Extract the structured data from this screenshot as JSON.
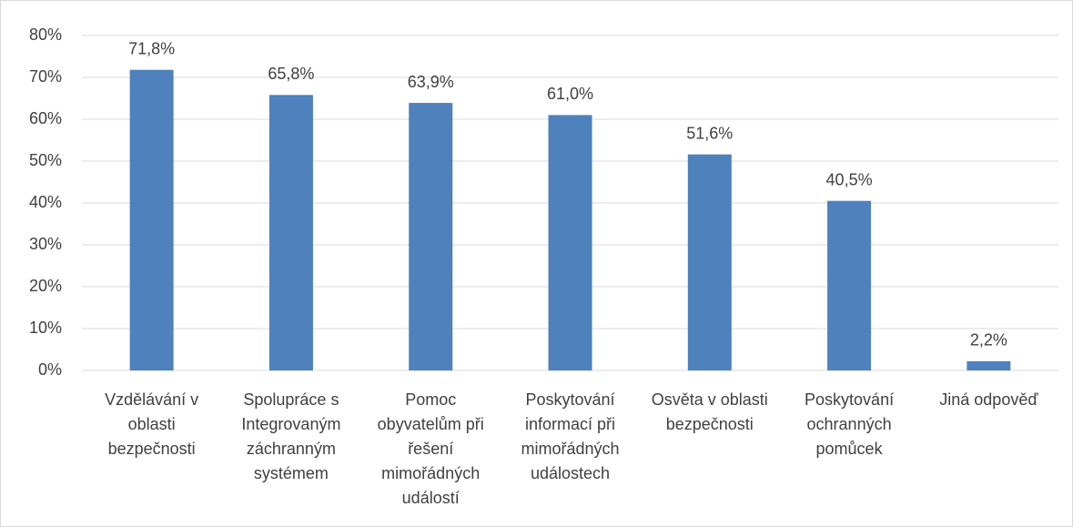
{
  "chart_data": {
    "type": "bar",
    "categories": [
      "Vzdělávání v oblasti bezpečnosti",
      "Spolupráce s Integrovaným záchranným systémem",
      "Pomoc obyvatelům při řešení mimořádných událostí",
      "Poskytování informací při mimořádných událostech",
      "Osvěta v oblasti bezpečnosti",
      "Poskytování ochranných pomůcek",
      "Jiná odpověď"
    ],
    "values": [
      71.8,
      65.8,
      63.9,
      61.0,
      51.6,
      40.5,
      2.2
    ],
    "value_labels": [
      "71,8%",
      "65,8%",
      "63,9%",
      "61,0%",
      "51,6%",
      "40,5%",
      "2,2%"
    ],
    "color": "#4f81bd",
    "ylim": [
      0,
      80
    ],
    "yticks": [
      {
        "value": 0,
        "label": "0%"
      },
      {
        "value": 10,
        "label": "10%"
      },
      {
        "value": 20,
        "label": "20%"
      },
      {
        "value": 30,
        "label": "30%"
      },
      {
        "value": 40,
        "label": "40%"
      },
      {
        "value": 50,
        "label": "50%"
      },
      {
        "value": 60,
        "label": "60%"
      },
      {
        "value": 70,
        "label": "70%"
      },
      {
        "value": 80,
        "label": "80%"
      }
    ],
    "grid": true
  }
}
